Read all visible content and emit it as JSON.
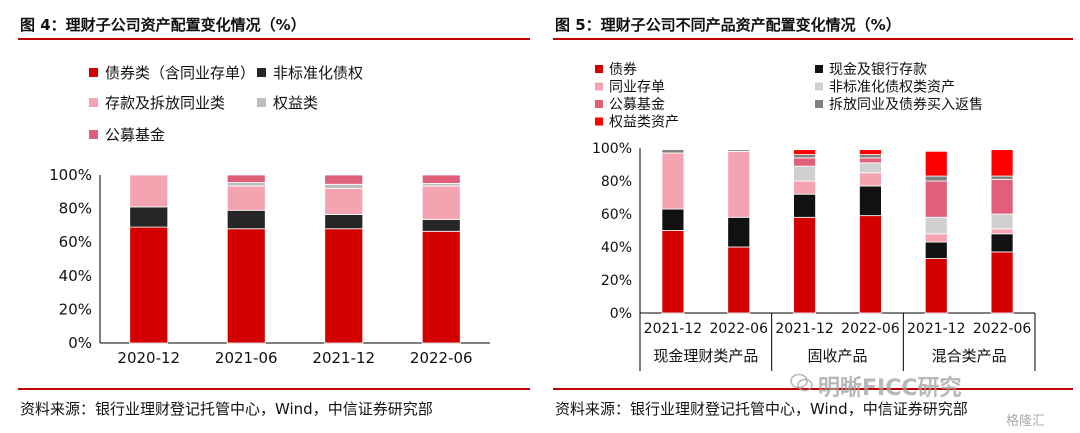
{
  "left": {
    "title": "图 4：理财子公司资产配置变化情况（%）",
    "source": "资料来源：银行业理财登记托管中心，Wind，中信证券研究部"
  },
  "right": {
    "title": "图 5：理财子公司不同产品资产配置变化情况（%）",
    "source": "资料来源：银行业理财登记托管中心，Wind，中信证券研究部"
  },
  "watermark": {
    "text": "明晰FICC研究",
    "corner": "格隆汇"
  },
  "colors": {
    "bonds": "#d40000",
    "nonstandard": "#262626",
    "deposits": "#f4a4b0",
    "equity": "#bfbfbf",
    "funds": "#e0607a",
    "repo": "#808080",
    "equity_assets": "#ff0000",
    "cash_bank": "#111111",
    "nonstd_equity": "#d0d0d0",
    "interbank_cd": "#f4a4b0",
    "rule": "#c00000"
  },
  "chart_data": [
    {
      "type": "bar",
      "stacked": true,
      "categories": [
        "2020-12",
        "2021-06",
        "2021-12",
        "2022-06"
      ],
      "yticks": [
        "0%",
        "20%",
        "40%",
        "60%",
        "80%",
        "100%"
      ],
      "ylim": [
        0,
        100
      ],
      "legend_position": "top",
      "series": [
        {
          "name": "债券类（含同业存单）",
          "color_key": "bonds",
          "values": [
            69,
            68,
            68,
            66.5
          ]
        },
        {
          "name": "非标准化债权",
          "color_key": "nonstandard",
          "values": [
            12,
            11,
            8.5,
            7
          ]
        },
        {
          "name": "存款及拆放同业类",
          "color_key": "deposits",
          "values": [
            19,
            14.5,
            15.5,
            20
          ]
        },
        {
          "name": "权益类",
          "color_key": "equity",
          "values": [
            0,
            2,
            2.5,
            1.5
          ]
        },
        {
          "name": "公募基金",
          "color_key": "funds",
          "values": [
            0,
            4.5,
            5.5,
            5
          ]
        }
      ]
    },
    {
      "type": "bar",
      "stacked": true,
      "categories": [
        "2021-12",
        "2022-06",
        "2021-12",
        "2022-06",
        "2021-12",
        "2022-06"
      ],
      "groups": [
        "现金理财类产品",
        "固收产品",
        "混合类产品"
      ],
      "yticks": [
        "0%",
        "20%",
        "40%",
        "60%",
        "80%",
        "100%"
      ],
      "ylim": [
        0,
        100
      ],
      "legend_position": "top",
      "series": [
        {
          "name": "债券",
          "color_key": "bonds",
          "values": [
            50,
            40,
            58,
            59,
            33,
            37
          ]
        },
        {
          "name": "现金及银行存款",
          "color_key": "cash_bank",
          "values": [
            13,
            18,
            14,
            18,
            10,
            11
          ]
        },
        {
          "name": "同业存单",
          "color_key": "interbank_cd",
          "values": [
            34,
            40,
            8,
            8,
            5,
            3
          ]
        },
        {
          "name": "非标准化债权类资产",
          "color_key": "nonstd_equity",
          "values": [
            0,
            0,
            9,
            6,
            10,
            9
          ]
        },
        {
          "name": "公募基金",
          "color_key": "funds",
          "values": [
            0,
            0,
            5,
            3,
            22,
            21
          ]
        },
        {
          "name": "拆放同业及债券买入返售",
          "color_key": "repo",
          "values": [
            2,
            1,
            2,
            2,
            3,
            2
          ]
        },
        {
          "name": "权益类资产",
          "color_key": "equity_assets",
          "values": [
            0,
            0,
            3,
            3,
            15,
            16
          ]
        }
      ]
    }
  ]
}
